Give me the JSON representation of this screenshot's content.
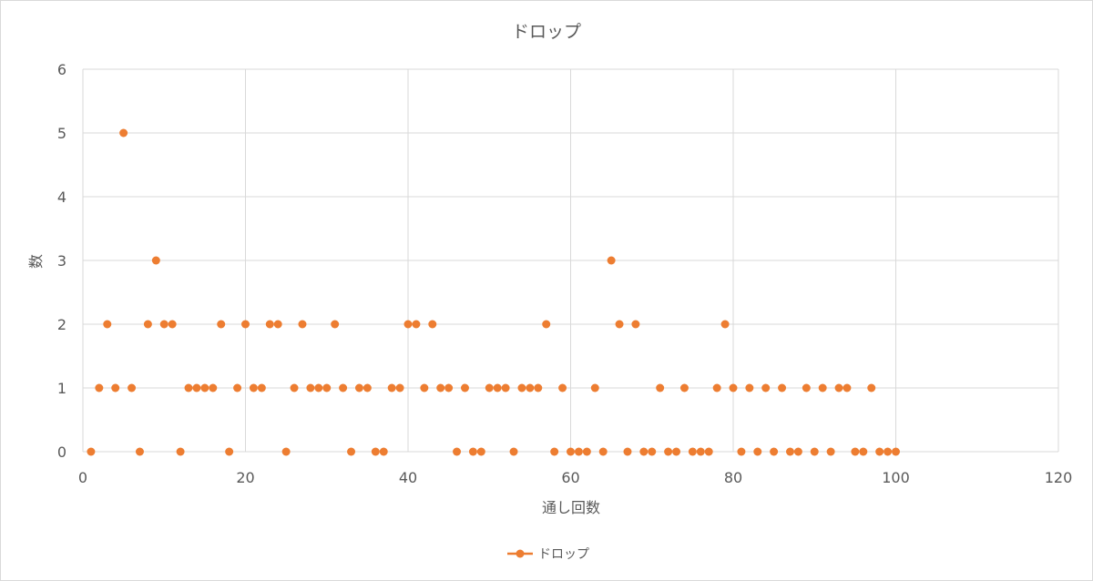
{
  "chart_data": {
    "type": "scatter",
    "title": "ドロップ",
    "xlabel": "通し回数",
    "ylabel": "数",
    "xlim": [
      0,
      120
    ],
    "ylim": [
      0,
      6
    ],
    "x_ticks": [
      "0",
      "20",
      "40",
      "60",
      "80",
      "100",
      "120"
    ],
    "y_ticks": [
      "0",
      "1",
      "2",
      "3",
      "4",
      "5",
      "6"
    ],
    "grid": true,
    "legend_position": "bottom",
    "series": [
      {
        "name": "ドロップ",
        "color": "#ed7d31",
        "x": [
          1,
          2,
          3,
          4,
          5,
          6,
          7,
          8,
          9,
          10,
          11,
          12,
          13,
          14,
          15,
          16,
          17,
          18,
          19,
          20,
          21,
          22,
          23,
          24,
          25,
          26,
          27,
          28,
          29,
          30,
          31,
          32,
          33,
          34,
          35,
          36,
          37,
          38,
          39,
          40,
          41,
          42,
          43,
          44,
          45,
          46,
          47,
          48,
          49,
          50,
          51,
          52,
          53,
          54,
          55,
          56,
          57,
          58,
          59,
          60,
          61,
          62,
          63,
          64,
          65,
          66,
          67,
          68,
          69,
          70,
          71,
          72,
          73,
          74,
          75,
          76,
          77,
          78,
          79,
          80,
          81,
          82,
          83,
          84,
          85,
          86,
          87,
          88,
          89,
          90,
          91,
          92,
          93,
          94,
          95,
          96,
          97,
          98,
          99,
          100
        ],
        "y": [
          0,
          1,
          2,
          1,
          5,
          1,
          0,
          2,
          3,
          2,
          2,
          0,
          1,
          1,
          1,
          1,
          2,
          0,
          1,
          2,
          1,
          1,
          2,
          2,
          0,
          1,
          2,
          1,
          1,
          1,
          2,
          1,
          0,
          1,
          1,
          0,
          0,
          1,
          1,
          2,
          2,
          1,
          2,
          1,
          1,
          0,
          1,
          0,
          0,
          1,
          1,
          1,
          0,
          1,
          1,
          1,
          2,
          0,
          1,
          0,
          0,
          0,
          1,
          0,
          3,
          2,
          0,
          2,
          0,
          0,
          1,
          0,
          0,
          1,
          0,
          0,
          0,
          1,
          2,
          1,
          0,
          1,
          0,
          1,
          0,
          1,
          0,
          0,
          1,
          0,
          1,
          0,
          1,
          1,
          0,
          0,
          1,
          0,
          0,
          0
        ]
      }
    ]
  }
}
